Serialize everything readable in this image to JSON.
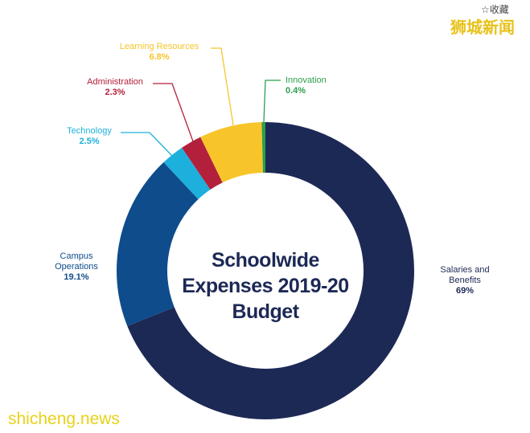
{
  "chart_data": {
    "type": "donut",
    "title": "Schoolwide Expenses 2019-20 Budget",
    "categories": [
      "Salaries and Benefits",
      "Campus Operations",
      "Technology",
      "Administration",
      "Learning Resources",
      "Innovation"
    ],
    "values": [
      69,
      19.1,
      2.5,
      2.3,
      6.8,
      0.4
    ],
    "value_labels": [
      "69%",
      "19.1%",
      "2.5%",
      "2.3%",
      "6.8%",
      "0.4%"
    ],
    "colors": [
      "#1d2955",
      "#0e4c8c",
      "#1eb0dc",
      "#b3203b",
      "#f7c52a",
      "#2d9f4b"
    ]
  },
  "watermarks": {
    "favorite": "☆收藏",
    "brand": "狮城新闻",
    "site": "shicheng.news"
  }
}
